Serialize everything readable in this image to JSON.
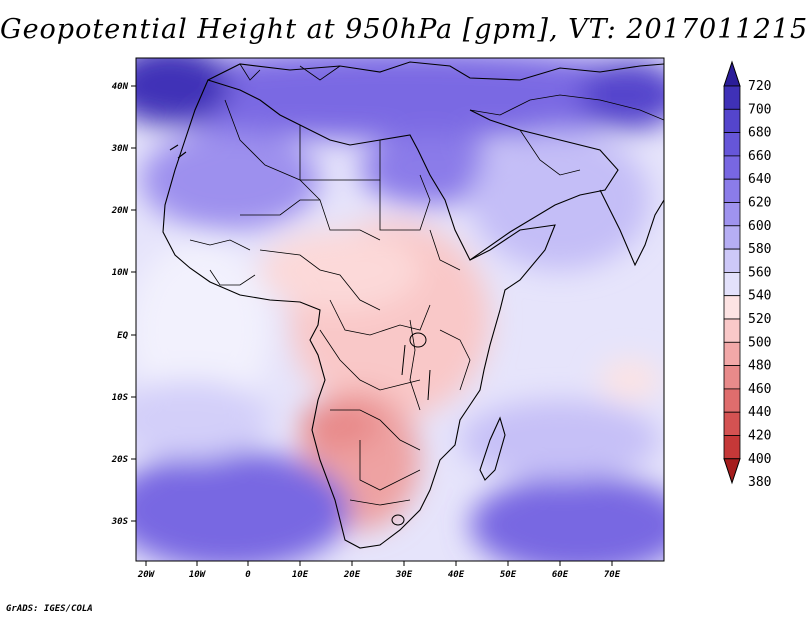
{
  "title": "Geopotential Height at 950hPa [gpm], VT: 2017011215",
  "credit": "GrADS: IGES/COLA",
  "map": {
    "region": "Africa",
    "lon_range": [
      -22,
      80
    ],
    "lat_range": [
      -37,
      46
    ],
    "x_ticks": [
      "20W",
      "10W",
      "0",
      "10E",
      "20E",
      "30E",
      "40E",
      "50E",
      "60E",
      "70E"
    ],
    "y_ticks": [
      "40N",
      "30N",
      "20N",
      "10N",
      "EQ",
      "10S",
      "20S",
      "30S"
    ],
    "field_regions": [
      {
        "area": "north-africa-mediterranean",
        "level": 640
      },
      {
        "area": "sahara-west",
        "level": 600
      },
      {
        "area": "arabia",
        "level": 580
      },
      {
        "area": "tropical-atlantic",
        "level": 540
      },
      {
        "area": "central-africa",
        "level": 510
      },
      {
        "area": "southern-africa-kalahari",
        "level": 470
      },
      {
        "area": "south-atlantic-high",
        "level": 640
      },
      {
        "area": "south-indian-high",
        "level": 640
      }
    ]
  },
  "colorbar": {
    "levels": [
      "720",
      "700",
      "680",
      "660",
      "640",
      "620",
      "600",
      "580",
      "560",
      "540",
      "520",
      "500",
      "480",
      "460",
      "440",
      "420",
      "400",
      "380"
    ],
    "colors": [
      "#2b1d99",
      "#3f31b7",
      "#5445cc",
      "#6656d9",
      "#7867e2",
      "#8b7ce9",
      "#9f93ef",
      "#b6aef4",
      "#cdc8f8",
      "#e3e1fb",
      "#fde3e3",
      "#f9c8c8",
      "#f2a8a8",
      "#e88a8a",
      "#df6d6d",
      "#d45252",
      "#c53838",
      "#a51d1d"
    ]
  }
}
